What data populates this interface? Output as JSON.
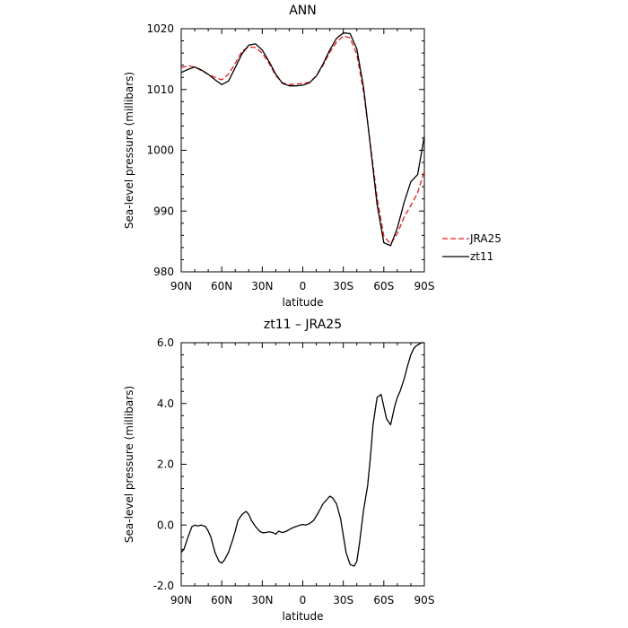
{
  "chart_data": [
    {
      "type": "line",
      "title": "ANN",
      "xlabel": "latitude",
      "ylabel": "Sea-level pressure (millibars)",
      "x_ticks": [
        "90N",
        "60N",
        "30N",
        "0",
        "30S",
        "60S",
        "90S"
      ],
      "x_tick_values": [
        90,
        60,
        30,
        0,
        -30,
        -60,
        -90
      ],
      "ylim": [
        980,
        1020
      ],
      "y_ticks": [
        "980",
        "990",
        "1000",
        "1010",
        "1020"
      ],
      "y_tick_values": [
        980,
        990,
        1000,
        1010,
        1020
      ],
      "legend": "right",
      "x": [
        90,
        85,
        80,
        75,
        70,
        65,
        60,
        55,
        50,
        45,
        40,
        35,
        30,
        25,
        20,
        15,
        10,
        5,
        0,
        -5,
        -10,
        -15,
        -20,
        -25,
        -30,
        -35,
        -40,
        -45,
        -50,
        -55,
        -60,
        -65,
        -70,
        -75,
        -80,
        -85,
        -90
      ],
      "series": [
        {
          "name": "JRA25",
          "color": "#e41a1c",
          "dash": "dashed",
          "values": [
            1013.6,
            1013.9,
            1013.7,
            1013.1,
            1012.5,
            1012.0,
            1011.6,
            1012.5,
            1014.3,
            1016.3,
            1017.0,
            1016.9,
            1016.0,
            1014.3,
            1012.3,
            1011.1,
            1010.8,
            1010.9,
            1011.0,
            1011.2,
            1012.2,
            1014.0,
            1016.1,
            1017.8,
            1018.8,
            1018.5,
            1015.8,
            1009.6,
            1001.1,
            992.2,
            985.9,
            984.6,
            986.3,
            989.0,
            990.9,
            993.0,
            996.6
          ]
        },
        {
          "name": "zt11",
          "color": "#000000",
          "dash": "solid",
          "values": [
            1012.8,
            1013.3,
            1013.7,
            1013.2,
            1012.5,
            1011.6,
            1010.8,
            1011.4,
            1013.6,
            1015.9,
            1017.3,
            1017.5,
            1016.5,
            1014.6,
            1012.5,
            1011.0,
            1010.6,
            1010.6,
            1010.7,
            1011.1,
            1012.2,
            1014.2,
            1016.5,
            1018.4,
            1019.3,
            1019.2,
            1016.7,
            1010.3,
            1000.8,
            991.1,
            984.8,
            984.3,
            987.2,
            991.4,
            994.8,
            996.0,
            1002.3
          ]
        }
      ]
    },
    {
      "type": "line",
      "title": "zt11 – JRA25",
      "xlabel": "latitude",
      "ylabel": "Sea-level pressure (millibars)",
      "x_ticks": [
        "90N",
        "60N",
        "30N",
        "0",
        "30S",
        "60S",
        "90S"
      ],
      "x_tick_values": [
        90,
        60,
        30,
        0,
        -30,
        -60,
        -90
      ],
      "ylim": [
        -2,
        6
      ],
      "y_ticks": [
        "-2.0",
        "0.0",
        "2.0",
        "4.0",
        "6.0"
      ],
      "y_tick_values": [
        -2,
        0,
        2,
        4,
        6
      ],
      "x": [
        90,
        88,
        85,
        82,
        80,
        78,
        75,
        72,
        70,
        68,
        65,
        62,
        60,
        58,
        55,
        52,
        50,
        48,
        45,
        42,
        40,
        38,
        35,
        32,
        30,
        28,
        25,
        22,
        20,
        18,
        15,
        12,
        10,
        8,
        5,
        2,
        0,
        -2,
        -5,
        -8,
        -10,
        -12,
        -15,
        -18,
        -20,
        -22,
        -25,
        -28,
        -30,
        -32,
        -35,
        -38,
        -40,
        -42,
        -45,
        -48,
        -50,
        -52,
        -55,
        -58,
        -60,
        -62,
        -65,
        -68,
        -70,
        -72,
        -75,
        -78,
        -80,
        -82,
        -84,
        -86,
        -88,
        -90
      ],
      "series": [
        {
          "name": "",
          "color": "#000000",
          "dash": "solid",
          "values": [
            -0.9,
            -0.8,
            -0.4,
            -0.05,
            0.0,
            -0.03,
            0.0,
            -0.05,
            -0.2,
            -0.4,
            -0.9,
            -1.2,
            -1.25,
            -1.15,
            -0.9,
            -0.5,
            -0.2,
            0.15,
            0.35,
            0.45,
            0.35,
            0.15,
            -0.05,
            -0.2,
            -0.25,
            -0.25,
            -0.22,
            -0.25,
            -0.3,
            -0.2,
            -0.25,
            -0.2,
            -0.15,
            -0.1,
            -0.05,
            0.0,
            0.02,
            0.0,
            0.05,
            0.15,
            0.3,
            0.45,
            0.7,
            0.85,
            0.95,
            0.9,
            0.7,
            0.2,
            -0.35,
            -0.9,
            -1.3,
            -1.35,
            -1.2,
            -0.6,
            0.5,
            1.3,
            2.2,
            3.3,
            4.2,
            4.3,
            3.9,
            3.5,
            3.3,
            3.9,
            4.2,
            4.4,
            4.8,
            5.3,
            5.6,
            5.8,
            5.9,
            5.95,
            6.0,
            6.0
          ]
        }
      ]
    }
  ]
}
